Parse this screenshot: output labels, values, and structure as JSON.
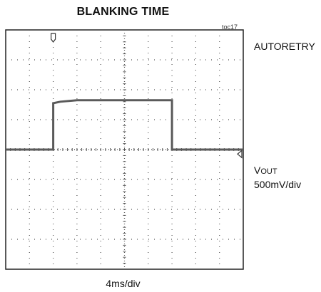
{
  "chart_data": {
    "type": "line",
    "title": "BLANKING TIME",
    "figure_id": "toc17",
    "xlabel": "4ms/div",
    "mode_label": "AUTORETRY",
    "channel": {
      "name_main": "V",
      "name_sub": "OUT",
      "scale": "500mV/div"
    },
    "grid": {
      "divisions_x": 10,
      "divisions_y": 8,
      "grid_on": true
    },
    "xlim": [
      0,
      10
    ],
    "ylim": [
      -4,
      4
    ],
    "trigger_marker_x": 2,
    "ground_marker_y": -0.15,
    "series": [
      {
        "x": [
          0,
          2,
          2,
          2.3,
          3,
          7,
          7,
          10
        ],
        "y": [
          0,
          0,
          1.55,
          1.6,
          1.65,
          1.65,
          0,
          0
        ]
      }
    ],
    "colors": {
      "trace": "#5a5a5a",
      "grid": "#555555",
      "frame": "#222222"
    }
  }
}
